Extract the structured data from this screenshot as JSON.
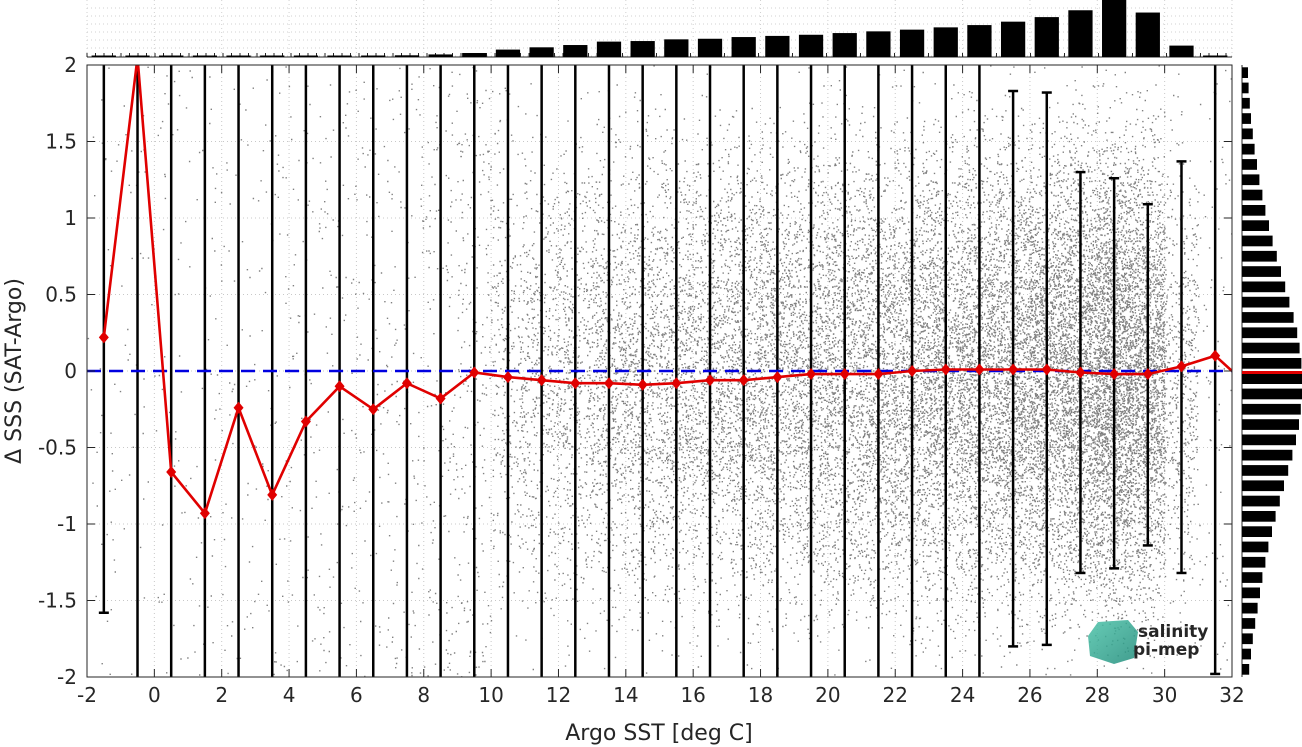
{
  "colors": {
    "scatter": "#808080",
    "mean_line": "#e00000",
    "zero_line": "#0000e0",
    "bars": "#000000",
    "logo": "#27a08c"
  },
  "logo": {
    "line1": "salinity",
    "line2": "pi-mep"
  },
  "chart_data": {
    "type": "scatter",
    "title": "",
    "xlabel": "Argo SST [deg C]",
    "ylabel": "Δ SSS (SAT-Argo)",
    "xlim": [
      -2,
      32
    ],
    "ylim": [
      -2,
      2
    ],
    "xticks": [
      -2,
      0,
      2,
      4,
      6,
      8,
      10,
      12,
      14,
      16,
      18,
      20,
      22,
      24,
      26,
      28,
      30,
      32
    ],
    "yticks": [
      -2,
      -1.5,
      -1,
      -0.5,
      0,
      0.5,
      1,
      1.5,
      2
    ],
    "grid": true,
    "reference_line": {
      "y": 0,
      "style": "dashed"
    },
    "bin_centers": [
      -1.5,
      -0.5,
      0.5,
      1.5,
      2.5,
      3.5,
      4.5,
      5.5,
      6.5,
      7.5,
      8.5,
      9.5,
      10.5,
      11.5,
      12.5,
      13.5,
      14.5,
      15.5,
      16.5,
      17.5,
      18.5,
      19.5,
      20.5,
      21.5,
      22.5,
      23.5,
      24.5,
      25.5,
      26.5,
      27.5,
      28.5,
      29.5,
      30.5,
      31.5
    ],
    "bin_mean": [
      0.22,
      2.05,
      -0.66,
      -0.93,
      -0.24,
      -0.81,
      -0.33,
      -0.1,
      -0.25,
      -0.08,
      -0.18,
      -0.01,
      -0.04,
      -0.06,
      -0.08,
      -0.08,
      -0.09,
      -0.08,
      -0.06,
      -0.06,
      -0.04,
      -0.02,
      -0.02,
      -0.02,
      0.0,
      0.01,
      0.01,
      0.01,
      0.01,
      -0.01,
      -0.02,
      -0.02,
      0.03,
      0.1
    ],
    "bin_std_low": [
      -1.58,
      -2.3,
      -2.3,
      -2.3,
      -2.3,
      -2.3,
      -2.3,
      -2.3,
      -2.3,
      -2.3,
      -2.3,
      -2.3,
      -2.3,
      -2.3,
      -2.3,
      -2.3,
      -2.3,
      -2.3,
      -2.3,
      -2.3,
      -2.3,
      -2.3,
      -2.3,
      -2.3,
      -2.3,
      -2.3,
      -2.3,
      -1.8,
      -1.79,
      -1.32,
      -1.29,
      -1.14,
      -1.32,
      -1.98
    ],
    "bin_std_high": [
      2.3,
      2.3,
      2.3,
      2.3,
      2.3,
      2.3,
      2.3,
      2.3,
      2.3,
      2.3,
      2.3,
      2.3,
      2.3,
      2.3,
      2.3,
      2.3,
      2.3,
      2.3,
      2.3,
      2.3,
      2.3,
      2.3,
      2.3,
      2.3,
      2.3,
      2.3,
      2.3,
      1.83,
      1.82,
      1.3,
      1.26,
      1.09,
      1.37,
      2.3
    ],
    "x_histogram": {
      "bin_centers": [
        -1.5,
        -0.5,
        0.5,
        1.5,
        2.5,
        3.5,
        4.5,
        5.5,
        6.5,
        7.5,
        8.5,
        9.5,
        10.5,
        11.5,
        12.5,
        13.5,
        14.5,
        15.5,
        16.5,
        17.5,
        18.5,
        19.5,
        20.5,
        21.5,
        22.5,
        23.5,
        24.5,
        25.5,
        26.5,
        27.5,
        28.5,
        29.5,
        30.5,
        31.5
      ],
      "relative_counts": [
        0.003,
        0.004,
        0.007,
        0.009,
        0.012,
        0.014,
        0.018,
        0.022,
        0.026,
        0.03,
        0.045,
        0.07,
        0.13,
        0.17,
        0.21,
        0.27,
        0.28,
        0.31,
        0.32,
        0.35,
        0.37,
        0.39,
        0.42,
        0.45,
        0.48,
        0.52,
        0.56,
        0.62,
        0.7,
        0.82,
        1.0,
        0.78,
        0.2,
        0.02
      ]
    },
    "y_histogram": {
      "bin_centers": [
        -1.95,
        -1.85,
        -1.75,
        -1.65,
        -1.55,
        -1.45,
        -1.35,
        -1.25,
        -1.15,
        -1.05,
        -0.95,
        -0.85,
        -0.75,
        -0.65,
        -0.55,
        -0.45,
        -0.35,
        -0.25,
        -0.15,
        -0.05,
        0.05,
        0.15,
        0.25,
        0.35,
        0.45,
        0.55,
        0.65,
        0.75,
        0.85,
        0.95,
        1.05,
        1.15,
        1.25,
        1.35,
        1.45,
        1.55,
        1.65,
        1.75,
        1.85,
        1.95
      ],
      "relative_counts": [
        0.12,
        0.15,
        0.18,
        0.22,
        0.26,
        0.3,
        0.34,
        0.39,
        0.44,
        0.5,
        0.56,
        0.63,
        0.7,
        0.77,
        0.84,
        0.9,
        0.95,
        0.98,
        1.0,
        1.0,
        0.99,
        0.96,
        0.92,
        0.86,
        0.79,
        0.72,
        0.65,
        0.58,
        0.51,
        0.45,
        0.39,
        0.34,
        0.29,
        0.25,
        0.21,
        0.18,
        0.15,
        0.13,
        0.11,
        0.1
      ],
      "mean_marker": -0.01
    }
  }
}
